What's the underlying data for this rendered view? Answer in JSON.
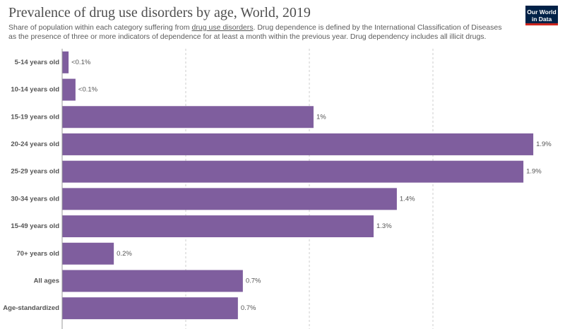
{
  "chart_data": {
    "type": "bar",
    "orientation": "horizontal",
    "title": "Prevalence of drug use disorders by age, World, 2019",
    "subtitle": [
      "Share of population within each category suffering from ",
      "drug use disorders",
      ". Drug dependence is defined by the International Classification of Diseases as the presence of three or more indicators of dependence for at least a month within the previous year. Drug dependency includes all illicit drugs."
    ],
    "logo": [
      "Our World",
      "in Data"
    ],
    "categories": [
      "5-14 years old",
      "10-14 years old",
      "15-19 years old",
      "20-24 years old",
      "25-29 years old",
      "30-34 years old",
      "15-49 years old",
      "70+ years old",
      "All ages",
      "Age-standardized"
    ],
    "values": [
      0.026,
      0.054,
      1.017,
      1.906,
      1.866,
      1.354,
      1.26,
      0.209,
      0.731,
      0.711
    ],
    "value_labels": [
      "<0.1%",
      "<0.1%",
      "1%",
      "1.9%",
      "1.9%",
      "1.4%",
      "1.3%",
      "0.2%",
      "0.7%",
      "0.7%"
    ],
    "color": "#7f5e9e",
    "xlim": [
      0,
      2
    ],
    "gridlines": [
      0.5,
      1,
      1.5
    ],
    "grid": true
  }
}
